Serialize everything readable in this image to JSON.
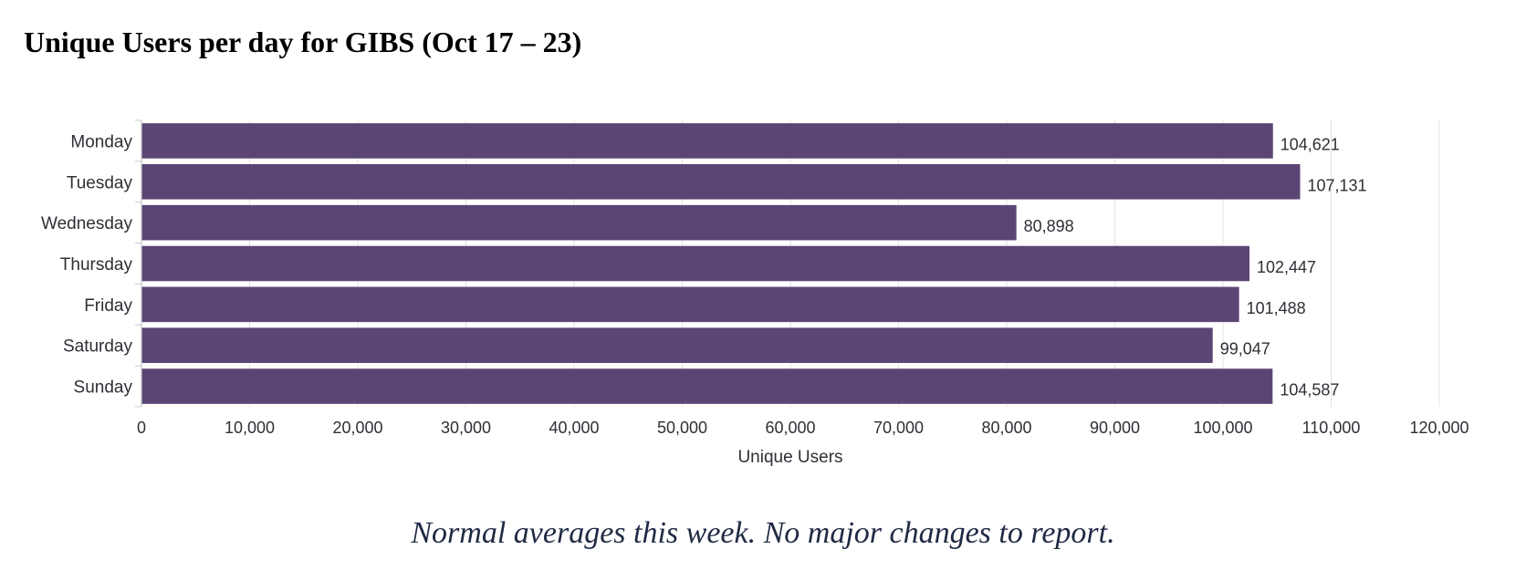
{
  "chart_data": {
    "type": "bar",
    "orientation": "horizontal",
    "title": "Unique Users per day for GIBS (Oct 17 – 23)",
    "categories": [
      "Monday",
      "Tuesday",
      "Wednesday",
      "Thursday",
      "Friday",
      "Saturday",
      "Sunday"
    ],
    "values": [
      104621,
      107131,
      80898,
      102447,
      101488,
      99047,
      104587
    ],
    "value_labels": [
      "104,621",
      "107,131",
      "80,898",
      "102,447",
      "101,488",
      "99,047",
      "104,587"
    ],
    "xlabel": "Unique Users",
    "ylabel": "",
    "xlim": [
      0,
      120000
    ],
    "ticks": [
      0,
      10000,
      20000,
      30000,
      40000,
      50000,
      60000,
      70000,
      80000,
      90000,
      100000,
      110000,
      120000
    ],
    "tick_labels": [
      "0",
      "10,000",
      "20,000",
      "30,000",
      "40,000",
      "50,000",
      "60,000",
      "70,000",
      "80,000",
      "90,000",
      "100,000",
      "110,000",
      "120,000"
    ],
    "grid": "vertical",
    "bar_color": "#5b4575"
  },
  "footer": {
    "note": "Normal averages this week.  No major changes to report."
  }
}
